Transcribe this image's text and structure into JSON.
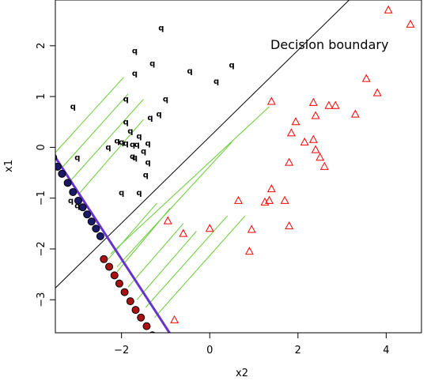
{
  "chart_data": {
    "type": "scatter",
    "xlabel": "x2",
    "ylabel": "x1",
    "xlim": [
      -3.5,
      4.8
    ],
    "ylim": [
      -3.65,
      2.9
    ],
    "xticks": [
      -2,
      0,
      2,
      4
    ],
    "yticks": [
      -3,
      -2,
      -1,
      0,
      1,
      2
    ],
    "annotation": "Decision boundary",
    "colors": {
      "class_a": "#000000",
      "class_b": "#ff0000",
      "projection_lines": "#66cc33",
      "projection_axis": "#6633cc",
      "projected_a": "#1a1a66",
      "projected_b": "#aa1111"
    },
    "decision_boundary": {
      "intercept": 0.21,
      "slope": 0.851,
      "x_range": [
        -3.5,
        3.5
      ]
    },
    "projection_axis": {
      "x_start": -3.7,
      "y_start": 0.07,
      "x_end": -0.5,
      "y_end": -4.2
    },
    "class_a_marker": "q",
    "class_b_marker": "triangle",
    "class_a": [
      [
        -1.1,
        2.35
      ],
      [
        -1.7,
        1.9
      ],
      [
        -1.3,
        1.65
      ],
      [
        -1.7,
        1.45
      ],
      [
        -0.45,
        1.5
      ],
      [
        0.15,
        1.3
      ],
      [
        0.5,
        1.62
      ],
      [
        -1.9,
        0.95
      ],
      [
        -3.1,
        0.8
      ],
      [
        -1.0,
        0.95
      ],
      [
        -1.15,
        0.65
      ],
      [
        -1.35,
        0.58
      ],
      [
        -1.9,
        0.5
      ],
      [
        -1.8,
        0.32
      ],
      [
        -1.6,
        0.22
      ],
      [
        -1.9,
        0.08
      ],
      [
        -1.75,
        0.05
      ],
      [
        -1.65,
        0.05
      ],
      [
        -1.4,
        0.08
      ],
      [
        -1.5,
        -0.08
      ],
      [
        -2.3,
        0.0
      ],
      [
        -2.0,
        0.1
      ],
      [
        -2.1,
        0.12
      ],
      [
        -1.7,
        -0.2
      ],
      [
        -1.75,
        -0.18
      ],
      [
        -1.4,
        -0.3
      ],
      [
        -1.45,
        -0.55
      ],
      [
        -3.0,
        -0.2
      ],
      [
        -1.6,
        -0.9
      ],
      [
        -2.0,
        -0.9
      ],
      [
        -3.15,
        -1.05
      ],
      [
        -3.0,
        -1.15
      ]
    ],
    "class_b": [
      [
        4.05,
        2.7
      ],
      [
        4.55,
        2.42
      ],
      [
        3.55,
        1.35
      ],
      [
        3.8,
        1.07
      ],
      [
        1.4,
        0.9
      ],
      [
        2.35,
        0.88
      ],
      [
        2.7,
        0.82
      ],
      [
        2.85,
        0.82
      ],
      [
        3.3,
        0.65
      ],
      [
        2.4,
        0.62
      ],
      [
        1.95,
        0.5
      ],
      [
        1.85,
        0.28
      ],
      [
        2.15,
        0.1
      ],
      [
        2.35,
        0.15
      ],
      [
        2.4,
        -0.05
      ],
      [
        2.5,
        -0.2
      ],
      [
        2.6,
        -0.38
      ],
      [
        1.8,
        -0.3
      ],
      [
        1.4,
        -0.82
      ],
      [
        1.35,
        -1.05
      ],
      [
        1.25,
        -1.08
      ],
      [
        1.7,
        -1.05
      ],
      [
        0.65,
        -1.05
      ],
      [
        -0.95,
        -1.45
      ],
      [
        -0.6,
        -1.7
      ],
      [
        0.0,
        -1.6
      ],
      [
        0.95,
        -1.62
      ],
      [
        1.8,
        -1.55
      ],
      [
        0.9,
        -2.05
      ],
      [
        -0.8,
        -3.4
      ]
    ],
    "projection_lines": [
      [
        [
          -3.55,
          -0.15
        ],
        [
          -1.95,
          1.38
        ]
      ],
      [
        [
          -3.35,
          -0.4
        ],
        [
          -1.85,
          1.05
        ]
      ],
      [
        [
          -3.15,
          -0.65
        ],
        [
          -1.5,
          0.95
        ]
      ],
      [
        [
          -2.95,
          -0.9
        ],
        [
          -1.5,
          0.55
        ]
      ],
      [
        [
          -2.3,
          -2.2
        ],
        [
          -1.2,
          -1.1
        ]
      ],
      [
        [
          -2.1,
          -2.45
        ],
        [
          -0.9,
          -1.2
        ]
      ],
      [
        [
          -1.85,
          -2.75
        ],
        [
          -0.6,
          -1.5
        ]
      ],
      [
        [
          -1.65,
          -3.0
        ],
        [
          -0.3,
          -1.65
        ]
      ],
      [
        [
          -1.45,
          -3.15
        ],
        [
          0.4,
          -1.35
        ]
      ],
      [
        [
          -1.25,
          -3.35
        ],
        [
          0.8,
          -1.35
        ]
      ],
      [
        [
          -2.1,
          -2.35
        ],
        [
          0.5,
          0.1
        ]
      ],
      [
        [
          -2.25,
          -2.1
        ],
        [
          1.35,
          0.8
        ]
      ]
    ],
    "projected_a": [
      [
        -3.65,
        0.0
      ],
      [
        -3.55,
        -0.2
      ],
      [
        -3.45,
        -0.38
      ],
      [
        -3.35,
        -0.52
      ],
      [
        -3.22,
        -0.7
      ],
      [
        -3.1,
        -0.88
      ],
      [
        -2.98,
        -1.05
      ],
      [
        -2.88,
        -1.18
      ],
      [
        -2.78,
        -1.32
      ],
      [
        -2.68,
        -1.46
      ],
      [
        -2.58,
        -1.6
      ],
      [
        -2.48,
        -1.75
      ]
    ],
    "projected_b": [
      [
        -2.4,
        -2.2
      ],
      [
        -2.28,
        -2.35
      ],
      [
        -2.16,
        -2.52
      ],
      [
        -2.05,
        -2.68
      ],
      [
        -1.93,
        -2.85
      ],
      [
        -1.8,
        -3.03
      ],
      [
        -1.68,
        -3.2
      ],
      [
        -1.56,
        -3.35
      ],
      [
        -1.43,
        -3.52
      ],
      [
        -1.3,
        -3.7
      ],
      [
        -1.18,
        -3.85
      ],
      [
        -1.05,
        -4.05
      ],
      [
        -0.93,
        -4.2
      ]
    ]
  }
}
